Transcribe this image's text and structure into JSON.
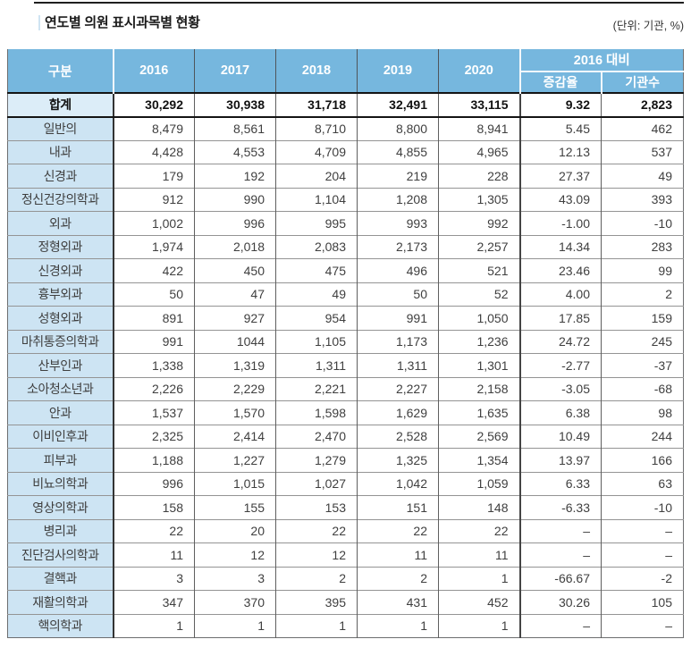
{
  "title": "연도별 의원 표시과목별 현황",
  "unit_label": "(단위: 기관, %)",
  "colors": {
    "header_bg": "#76b7de",
    "label_cell_bg": "#cde4f3",
    "total_label_bg": "#dcedf8"
  },
  "table": {
    "corner_header": "구분",
    "year_columns": [
      "2016",
      "2017",
      "2018",
      "2019",
      "2020"
    ],
    "group_header": "2016 대비",
    "sub_columns": [
      "증감율",
      "기관수"
    ],
    "rows": [
      {
        "label": "합계",
        "emphasis": true,
        "values": [
          "30,292",
          "30,938",
          "31,718",
          "32,491",
          "33,115",
          "9.32",
          "2,823"
        ]
      },
      {
        "label": "일반의",
        "emphasis": false,
        "values": [
          "8,479",
          "8,561",
          "8,710",
          "8,800",
          "8,941",
          "5.45",
          "462"
        ]
      },
      {
        "label": "내과",
        "emphasis": false,
        "values": [
          "4,428",
          "4,553",
          "4,709",
          "4,855",
          "4,965",
          "12.13",
          "537"
        ]
      },
      {
        "label": "신경과",
        "emphasis": false,
        "values": [
          "179",
          "192",
          "204",
          "219",
          "228",
          "27.37",
          "49"
        ]
      },
      {
        "label": "정신건강의학과",
        "emphasis": false,
        "values": [
          "912",
          "990",
          "1,104",
          "1,208",
          "1,305",
          "43.09",
          "393"
        ]
      },
      {
        "label": "외과",
        "emphasis": false,
        "values": [
          "1,002",
          "996",
          "995",
          "993",
          "992",
          "-1.00",
          "-10"
        ]
      },
      {
        "label": "정형외과",
        "emphasis": false,
        "values": [
          "1,974",
          "2,018",
          "2,083",
          "2,173",
          "2,257",
          "14.34",
          "283"
        ]
      },
      {
        "label": "신경외과",
        "emphasis": false,
        "values": [
          "422",
          "450",
          "475",
          "496",
          "521",
          "23.46",
          "99"
        ]
      },
      {
        "label": "흉부외과",
        "emphasis": false,
        "values": [
          "50",
          "47",
          "49",
          "50",
          "52",
          "4.00",
          "2"
        ]
      },
      {
        "label": "성형외과",
        "emphasis": false,
        "values": [
          "891",
          "927",
          "954",
          "991",
          "1,050",
          "17.85",
          "159"
        ]
      },
      {
        "label": "마취통증의학과",
        "emphasis": false,
        "values": [
          "991",
          "1044",
          "1,105",
          "1,173",
          "1,236",
          "24.72",
          "245"
        ]
      },
      {
        "label": "산부인과",
        "emphasis": false,
        "values": [
          "1,338",
          "1,319",
          "1,311",
          "1,311",
          "1,301",
          "-2.77",
          "-37"
        ]
      },
      {
        "label": "소아청소년과",
        "emphasis": false,
        "values": [
          "2,226",
          "2,229",
          "2,221",
          "2,227",
          "2,158",
          "-3.05",
          "-68"
        ]
      },
      {
        "label": "안과",
        "emphasis": false,
        "values": [
          "1,537",
          "1,570",
          "1,598",
          "1,629",
          "1,635",
          "6.38",
          "98"
        ]
      },
      {
        "label": "이비인후과",
        "emphasis": false,
        "values": [
          "2,325",
          "2,414",
          "2,470",
          "2,528",
          "2,569",
          "10.49",
          "244"
        ]
      },
      {
        "label": "피부과",
        "emphasis": false,
        "values": [
          "1,188",
          "1,227",
          "1,279",
          "1,325",
          "1,354",
          "13.97",
          "166"
        ]
      },
      {
        "label": "비뇨의학과",
        "emphasis": false,
        "values": [
          "996",
          "1,015",
          "1,027",
          "1,042",
          "1,059",
          "6.33",
          "63"
        ]
      },
      {
        "label": "영상의학과",
        "emphasis": false,
        "values": [
          "158",
          "155",
          "153",
          "151",
          "148",
          "-6.33",
          "-10"
        ]
      },
      {
        "label": "병리과",
        "emphasis": false,
        "values": [
          "22",
          "20",
          "22",
          "22",
          "22",
          "–",
          "–"
        ]
      },
      {
        "label": "진단검사의학과",
        "emphasis": false,
        "values": [
          "11",
          "12",
          "12",
          "11",
          "11",
          "–",
          "–"
        ]
      },
      {
        "label": "결핵과",
        "emphasis": false,
        "values": [
          "3",
          "3",
          "2",
          "2",
          "1",
          "-66.67",
          "-2"
        ]
      },
      {
        "label": "재활의학과",
        "emphasis": false,
        "values": [
          "347",
          "370",
          "395",
          "431",
          "452",
          "30.26",
          "105"
        ]
      },
      {
        "label": "핵의학과",
        "emphasis": false,
        "values": [
          "1",
          "1",
          "1",
          "1",
          "1",
          "–",
          "–"
        ]
      }
    ]
  }
}
